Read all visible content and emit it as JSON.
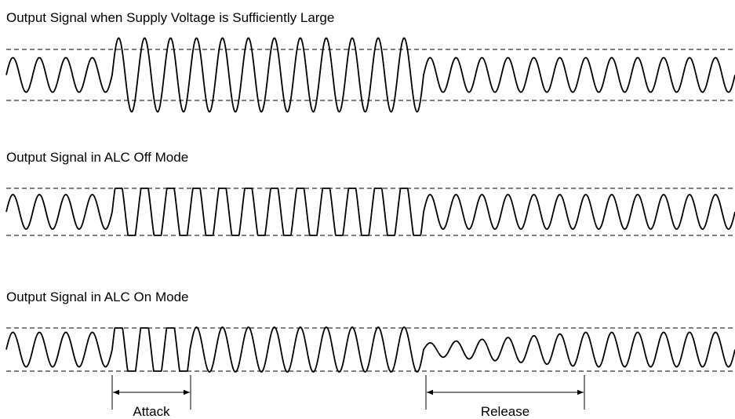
{
  "panels": [
    {
      "title": "Output Signal when Supply Voltage is Sufficiently Large"
    },
    {
      "title": "Output Signal in ALC Off Mode"
    },
    {
      "title": "Output Signal in ALC On Mode"
    }
  ],
  "annotations": {
    "attack": "Attack",
    "release": "Release"
  }
}
